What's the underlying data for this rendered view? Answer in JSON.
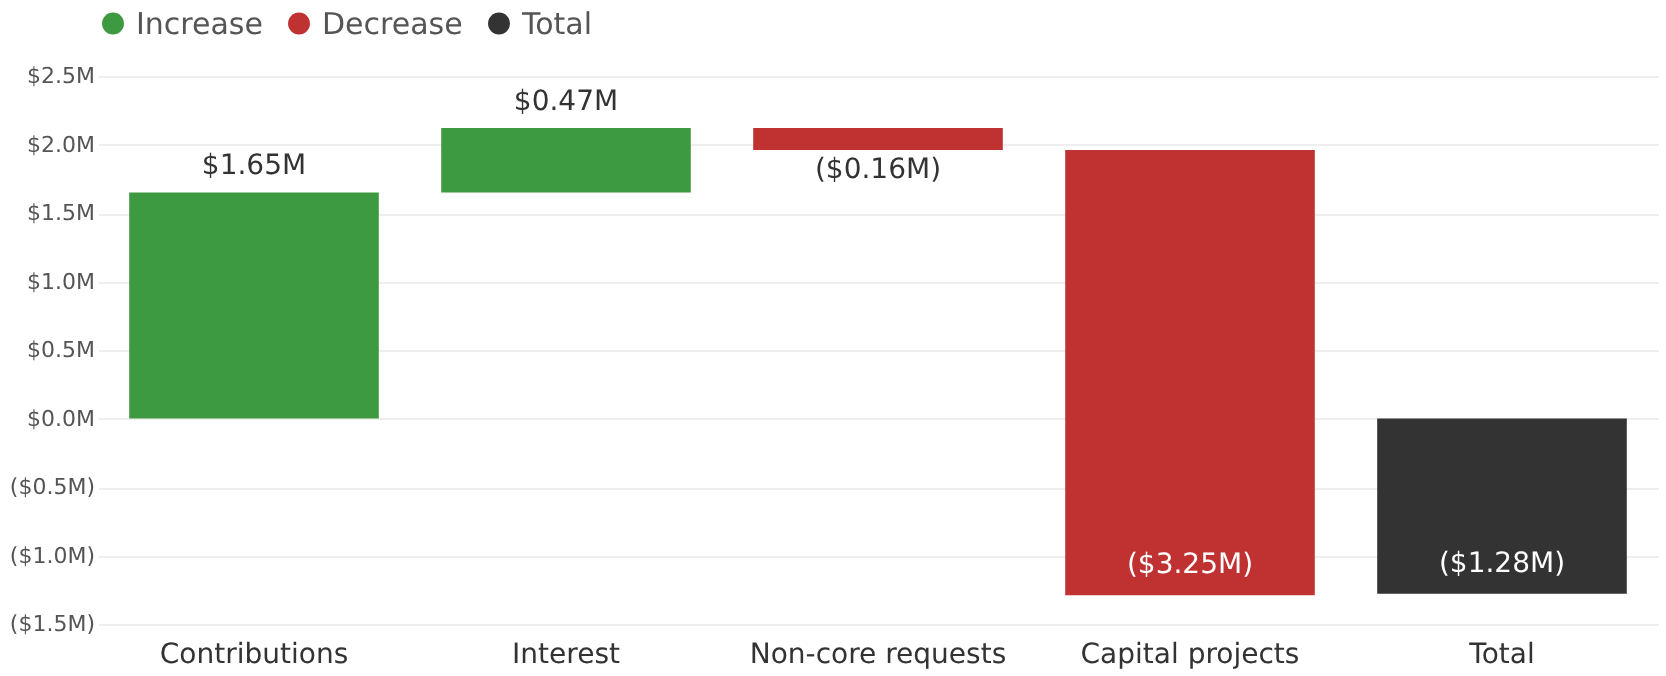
{
  "chart_data": {
    "type": "bar",
    "categories": [
      "Contributions",
      "Interest",
      "Non-core requests",
      "Capital projects",
      "Total"
    ],
    "series": [
      {
        "name": "Increase",
        "color": "#3d9a40",
        "values": [
          1.65,
          0.47,
          null,
          null,
          null
        ],
        "base": [
          0,
          1.65,
          null,
          null,
          null
        ],
        "value_labels": [
          "$1.65M",
          "$0.47M",
          null,
          null,
          null
        ]
      },
      {
        "name": "Decrease",
        "color": "#c03232",
        "values": [
          null,
          null,
          -0.16,
          -3.25,
          null
        ],
        "base": [
          null,
          null,
          2.12,
          1.96,
          null
        ],
        "value_labels": [
          null,
          null,
          "($0.16M)",
          "($3.25M)",
          null
        ]
      },
      {
        "name": "Total",
        "color": "#333333",
        "values": [
          null,
          null,
          null,
          null,
          -1.28
        ],
        "base": [
          null,
          null,
          null,
          null,
          0
        ],
        "value_labels": [
          null,
          null,
          null,
          null,
          "($1.28M)"
        ]
      }
    ],
    "ylim": [
      -1.5,
      2.5
    ],
    "yticks": [
      {
        "value": -1.5,
        "label": "($1.5M)"
      },
      {
        "value": -1.0,
        "label": "($1.0M)"
      },
      {
        "value": -0.5,
        "label": "($0.5M)"
      },
      {
        "value": 0,
        "label": "$0.0M"
      },
      {
        "value": 0.5,
        "label": "$0.5M"
      },
      {
        "value": 1.0,
        "label": "$1.0M"
      },
      {
        "value": 1.5,
        "label": "$1.5M"
      },
      {
        "value": 2.0,
        "label": "$2.0M"
      },
      {
        "value": 2.5,
        "label": "$2.5M"
      }
    ],
    "grid": "y",
    "legend": "top left"
  }
}
